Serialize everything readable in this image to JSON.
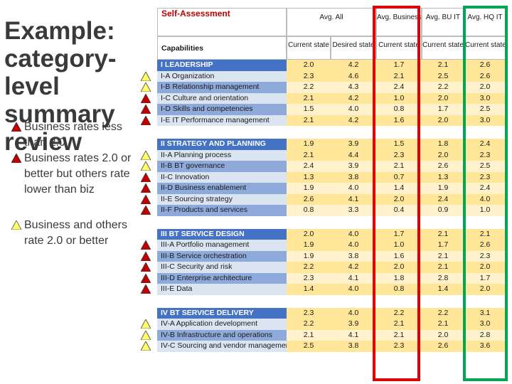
{
  "title": "Example: category-level summary review",
  "legend": [
    {
      "shape": "red",
      "text": "Business rates less than 2.0"
    },
    {
      "shape": "red",
      "text": "Business rates 2.0 or better but others rate lower than biz"
    },
    {
      "shape": "yellow",
      "text": "Business and others rate 2.0 or better"
    }
  ],
  "colors": {
    "red_triangle": "#c00000",
    "yellow_triangle": "#ffff66",
    "header_blue": "#4472c4",
    "subhead_blue": "#8eaadb",
    "row_light": "#dbe5f1",
    "value_band": "#ffe699",
    "value_band_light": "#fff2cc",
    "business_box": "#e00000",
    "hq_box": "#00a651"
  },
  "table": {
    "title": "Self-Assessment",
    "groups": [
      "Avg. All",
      "Avg. Business",
      "Avg. BU IT",
      "Avg. HQ IT"
    ],
    "capabilities_label": "Capabilities",
    "columns": [
      "Current state",
      "Desired state",
      "Current state",
      "Current state",
      "Current state"
    ],
    "sections": [
      {
        "name": "I LEADERSHIP",
        "values": [
          "2.0",
          "4.2",
          "1.7",
          "2.1",
          "2.6"
        ],
        "rows": [
          {
            "label": "I-A Organization",
            "values": [
              "2.3",
              "4.6",
              "2.1",
              "2.5",
              "2.6"
            ],
            "marker": "yellow"
          },
          {
            "label": "I-B Relationship management",
            "values": [
              "2.2",
              "4.3",
              "2.4",
              "2.2",
              "2.0"
            ],
            "marker": "yellow"
          },
          {
            "label": "I-C Culture and orientation",
            "values": [
              "2.1",
              "4.2",
              "1.0",
              "2.0",
              "3.0"
            ],
            "marker": "red"
          },
          {
            "label": "I-D Skills and competencies",
            "values": [
              "1.5",
              "4.0",
              "0.8",
              "1.7",
              "2.5"
            ],
            "marker": "red"
          },
          {
            "label": "I-E IT Performance management",
            "values": [
              "2.1",
              "4.2",
              "1.6",
              "2.0",
              "3.0"
            ],
            "marker": "red"
          }
        ]
      },
      {
        "name": "II STRATEGY AND PLANNING",
        "values": [
          "1.9",
          "3.9",
          "1.5",
          "1.8",
          "2.4"
        ],
        "rows": [
          {
            "label": "II-A Planning process",
            "values": [
              "2.1",
              "4.4",
              "2.3",
              "2.0",
              "2.3"
            ],
            "marker": "yellow"
          },
          {
            "label": "II-B BT governance",
            "values": [
              "2.4",
              "3.9",
              "2.1",
              "2.6",
              "2.5"
            ],
            "marker": "yellow"
          },
          {
            "label": "II-C Innovation",
            "values": [
              "1.3",
              "3.8",
              "0.7",
              "1.3",
              "2.3"
            ],
            "marker": "red"
          },
          {
            "label": "II-D Business enablement",
            "values": [
              "1.9",
              "4.0",
              "1.4",
              "1.9",
              "2.4"
            ],
            "marker": "red"
          },
          {
            "label": "II-E Sourcing strategy",
            "values": [
              "2.6",
              "4.1",
              "2.0",
              "2.4",
              "4.0"
            ],
            "marker": "red"
          },
          {
            "label": "II-F Products and services",
            "values": [
              "0.8",
              "3.3",
              "0.4",
              "0.9",
              "1.0"
            ],
            "marker": "red"
          }
        ]
      },
      {
        "name": "III BT SERVICE DESIGN",
        "values": [
          "2.0",
          "4.0",
          "1.7",
          "2.1",
          "2.1"
        ],
        "rows": [
          {
            "label": "III-A Portfolio management",
            "values": [
              "1.9",
              "4.0",
              "1.0",
              "1.7",
              "2.6"
            ],
            "marker": "red"
          },
          {
            "label": "III-B Service orchestration",
            "values": [
              "1.9",
              "3.8",
              "1.6",
              "2.1",
              "2.3"
            ],
            "marker": "red"
          },
          {
            "label": "III-C Security and risk",
            "values": [
              "2.2",
              "4.2",
              "2.0",
              "2.1",
              "2.0"
            ],
            "marker": "red"
          },
          {
            "label": "III-D Enterprise architecture",
            "values": [
              "2.3",
              "4.1",
              "1.8",
              "2.8",
              "1.7"
            ],
            "marker": "red"
          },
          {
            "label": "III-E Data",
            "values": [
              "1.4",
              "4.0",
              "0.8",
              "1.4",
              "2.0"
            ],
            "marker": "red"
          }
        ]
      },
      {
        "name": "IV BT SERVICE DELIVERY",
        "values": [
          "2.3",
          "4.0",
          "2.2",
          "2.2",
          "3.1"
        ],
        "rows": [
          {
            "label": "IV-A Application development",
            "values": [
              "2.2",
              "3.9",
              "2.1",
              "2.1",
              "3.0"
            ],
            "marker": "yellow"
          },
          {
            "label": "IV-B Infrastructure and operations",
            "values": [
              "2.1",
              "4.1",
              "2.1",
              "2.0",
              "2.8"
            ],
            "marker": "yellow"
          },
          {
            "label": "IV-C Sourcing and vendor management",
            "values": [
              "2.5",
              "3.8",
              "2.3",
              "2.6",
              "3.6"
            ],
            "marker": "yellow"
          }
        ]
      }
    ]
  }
}
